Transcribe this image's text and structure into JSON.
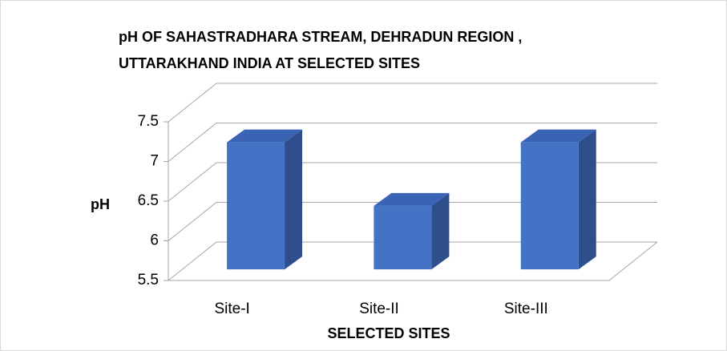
{
  "chart_data": {
    "type": "bar3d",
    "title": [
      "pH OF SAHASTRADHARA STREAM, DEHRADUN REGION ,",
      "UTTARAKHAND INDIA AT SELECTED SITES"
    ],
    "xlabel": "SELECTED SITES",
    "ylabel": "pH",
    "categories": [
      "Site-I",
      "Site-II",
      "Site-III"
    ],
    "values": [
      7.1,
      6.3,
      7.1
    ],
    "color": "#4472c4",
    "ylim": [
      5.5,
      7.5
    ],
    "yticks": [
      5.5,
      6,
      6.5,
      7,
      7.5
    ],
    "grid": true
  }
}
